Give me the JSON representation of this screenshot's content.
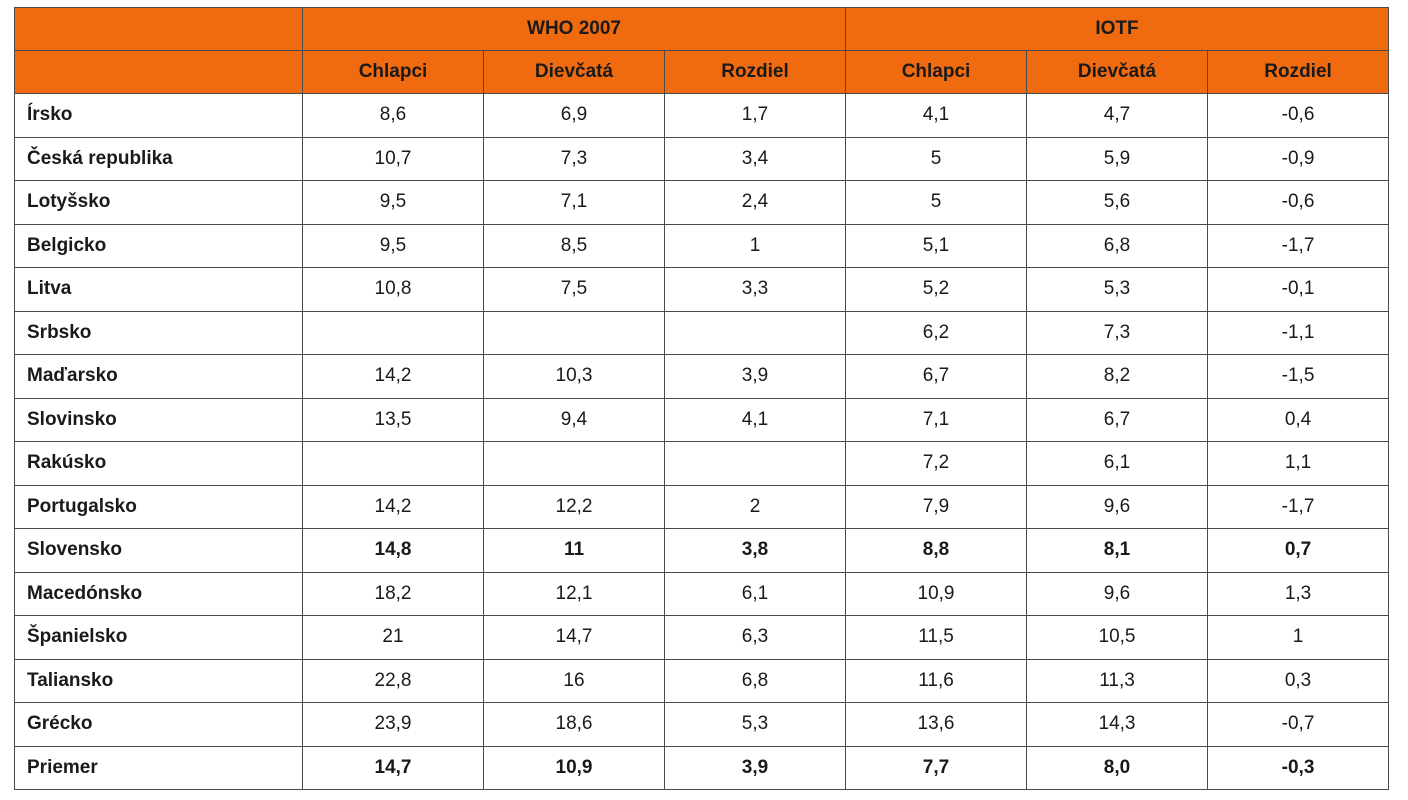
{
  "table": {
    "groups": [
      {
        "label": "WHO 2007"
      },
      {
        "label": "IOTF"
      }
    ],
    "subheaders": [
      "Chlapci",
      "Dievčatá",
      "Rozdiel",
      "Chlapci",
      "Dievčatá",
      "Rozdiel"
    ],
    "rows": [
      {
        "country": "Írsko",
        "bold": false,
        "values": [
          "8,6",
          "6,9",
          "1,7",
          "4,1",
          "4,7",
          "-0,6"
        ]
      },
      {
        "country": "Česká republika",
        "bold": false,
        "values": [
          "10,7",
          "7,3",
          "3,4",
          "5",
          "5,9",
          "-0,9"
        ]
      },
      {
        "country": "Lotyšsko",
        "bold": false,
        "values": [
          "9,5",
          "7,1",
          "2,4",
          "5",
          "5,6",
          "-0,6"
        ]
      },
      {
        "country": "Belgicko",
        "bold": false,
        "values": [
          "9,5",
          "8,5",
          "1",
          "5,1",
          "6,8",
          "-1,7"
        ]
      },
      {
        "country": "Litva",
        "bold": false,
        "values": [
          "10,8",
          "7,5",
          "3,3",
          "5,2",
          "5,3",
          "-0,1"
        ]
      },
      {
        "country": "Srbsko",
        "bold": false,
        "values": [
          "",
          "",
          "",
          "6,2",
          "7,3",
          "-1,1"
        ]
      },
      {
        "country": "Maďarsko",
        "bold": false,
        "values": [
          "14,2",
          "10,3",
          "3,9",
          "6,7",
          "8,2",
          "-1,5"
        ]
      },
      {
        "country": "Slovinsko",
        "bold": false,
        "values": [
          "13,5",
          "9,4",
          "4,1",
          "7,1",
          "6,7",
          "0,4"
        ]
      },
      {
        "country": "Rakúsko",
        "bold": false,
        "values": [
          "",
          "",
          "",
          "7,2",
          "6,1",
          "1,1"
        ]
      },
      {
        "country": "Portugalsko",
        "bold": false,
        "values": [
          "14,2",
          "12,2",
          "2",
          "7,9",
          "9,6",
          "-1,7"
        ]
      },
      {
        "country": "Slovensko",
        "bold": true,
        "values": [
          "14,8",
          "11",
          "3,8",
          "8,8",
          "8,1",
          "0,7"
        ]
      },
      {
        "country": "Macedónsko",
        "bold": false,
        "values": [
          "18,2",
          "12,1",
          "6,1",
          "10,9",
          "9,6",
          "1,3"
        ]
      },
      {
        "country": "Španielsko",
        "bold": false,
        "values": [
          "21",
          "14,7",
          "6,3",
          "11,5",
          "10,5",
          "1"
        ]
      },
      {
        "country": "Taliansko",
        "bold": false,
        "values": [
          "22,8",
          "16",
          "6,8",
          "11,6",
          "11,3",
          "0,3"
        ]
      },
      {
        "country": "Grécko",
        "bold": false,
        "values": [
          "23,9",
          "18,6",
          "5,3",
          "13,6",
          "14,3",
          "-0,7"
        ]
      },
      {
        "country": "Priemer",
        "bold": true,
        "values": [
          "14,7",
          "10,9",
          "3,9",
          "7,7",
          "8,0",
          "-0,3"
        ]
      }
    ]
  },
  "colors": {
    "header_bg": "#f06a0f",
    "border": "#4a4a4a"
  }
}
